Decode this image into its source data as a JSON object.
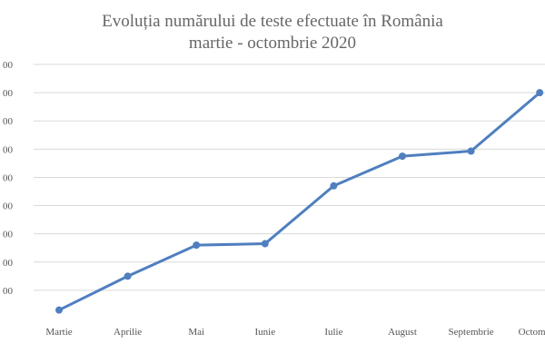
{
  "chart_data": {
    "type": "line",
    "title": "Evoluția numărului de teste efectuate în România",
    "subtitle": "martie - octombrie 2020",
    "categories": [
      "Martie",
      "Aprilie",
      "Mai",
      "Iunie",
      "Iulie",
      "August",
      "Septembrie",
      "Octombrie"
    ],
    "y_tick_labels": [
      "00",
      "00",
      "00",
      "00",
      "00",
      "00",
      "00",
      "00",
      "00"
    ],
    "series": [
      {
        "values": [
          0.3,
          1.5,
          2.6,
          2.65,
          4.7,
          5.75,
          5.93,
          8.0
        ]
      }
    ],
    "ylim": [
      0,
      9
    ],
    "grid": true,
    "legend": "none",
    "line_color": "#4f7fbf"
  }
}
